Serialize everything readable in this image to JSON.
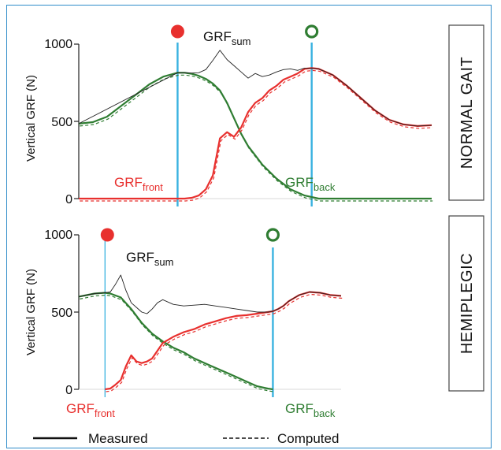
{
  "chart_data": [
    {
      "type": "line",
      "panel_label": "NORMAL GAIT",
      "ylabel": "Vertical GRF (N)",
      "y_ticks": [
        "0",
        "500",
        "1000"
      ],
      "ylim": [
        0,
        1000
      ],
      "annotations": {
        "sum": {
          "main": "GRF",
          "sub": "sum"
        },
        "front": {
          "main": "GRF",
          "sub": "front"
        },
        "back": {
          "main": "GRF",
          "sub": "back"
        }
      },
      "events": {
        "filled_circle_color": "#e8302e",
        "open_circle_color": "#2f7d32",
        "line_color": "#39b2e0"
      },
      "series": [
        {
          "key": "back",
          "color": "#2f7d32",
          "x": [
            0,
            4,
            8,
            12,
            16,
            20,
            24,
            28,
            30,
            32,
            34,
            36,
            38,
            40,
            42,
            44,
            46,
            48,
            50,
            52,
            56,
            60,
            64,
            68,
            72,
            76,
            80,
            84,
            88,
            92,
            96,
            100
          ],
          "y": [
            485,
            495,
            530,
            600,
            670,
            740,
            790,
            815,
            815,
            808,
            795,
            775,
            745,
            700,
            620,
            520,
            420,
            340,
            280,
            220,
            130,
            60,
            20,
            0,
            0,
            0,
            0,
            0,
            0,
            0,
            0,
            0
          ]
        },
        {
          "key": "front",
          "color": "#e8302e",
          "x": [
            0,
            28,
            30,
            32,
            34,
            36,
            38,
            40,
            42,
            44,
            46,
            48,
            50,
            52,
            54,
            56,
            58,
            60,
            62,
            64,
            66,
            68,
            72,
            76,
            80,
            84,
            88,
            92,
            96,
            100
          ],
          "y": [
            0,
            0,
            0,
            5,
            20,
            60,
            150,
            390,
            430,
            400,
            460,
            560,
            620,
            650,
            700,
            730,
            770,
            790,
            810,
            840,
            845,
            840,
            800,
            730,
            650,
            570,
            510,
            480,
            470,
            475
          ]
        },
        {
          "key": "sum",
          "color": "#222222",
          "x": [
            0,
            28,
            30,
            32,
            34,
            36,
            38,
            40,
            42,
            44,
            46,
            48,
            50,
            52,
            54,
            56,
            58,
            60,
            62,
            64,
            66,
            68,
            72,
            76,
            80,
            84,
            88,
            92,
            96,
            100
          ],
          "y": [
            485,
            815,
            815,
            813,
            815,
            835,
            895,
            960,
            900,
            860,
            820,
            780,
            810,
            790,
            800,
            820,
            835,
            840,
            830,
            845,
            845,
            840,
            800,
            730,
            650,
            570,
            510,
            480,
            470,
            475
          ]
        }
      ],
      "event_x": [
        28,
        66
      ]
    },
    {
      "type": "line",
      "panel_label": "HEMIPLEGIC",
      "ylabel": "Vertical GRF (N)",
      "y_ticks": [
        "0",
        "500",
        "1000"
      ],
      "ylim": [
        0,
        1000
      ],
      "annotations": {
        "sum": {
          "main": "GRF",
          "sub": "sum"
        },
        "front": {
          "main": "GRF",
          "sub": "front"
        },
        "back": {
          "main": "GRF",
          "sub": "back"
        }
      },
      "events": {
        "filled_circle_color": "#e8302e",
        "open_circle_color": "#2f7d32",
        "line_color": "#39b2e0"
      },
      "series": [
        {
          "key": "back",
          "color": "#2f7d32",
          "x": [
            0,
            6,
            10,
            12,
            16,
            20,
            24,
            28,
            32,
            36,
            40,
            44,
            48,
            52,
            56,
            60,
            64,
            68,
            72,
            74
          ],
          "y": [
            600,
            620,
            625,
            620,
            595,
            520,
            430,
            360,
            310,
            270,
            240,
            200,
            170,
            140,
            110,
            80,
            50,
            20,
            5,
            0
          ]
        },
        {
          "key": "front",
          "color": "#e8302e",
          "x": [
            10,
            12,
            14,
            16,
            18,
            20,
            22,
            24,
            26,
            28,
            30,
            32,
            36,
            40,
            44,
            48,
            52,
            56,
            60,
            64,
            68,
            72,
            74,
            76,
            78,
            80,
            84,
            88,
            92,
            96,
            100
          ],
          "y": [
            0,
            5,
            30,
            60,
            150,
            220,
            180,
            170,
            180,
            200,
            250,
            300,
            340,
            370,
            390,
            420,
            440,
            460,
            475,
            480,
            490,
            500,
            505,
            520,
            540,
            570,
            610,
            630,
            625,
            610,
            605
          ]
        },
        {
          "key": "sum",
          "color": "#222222",
          "x": [
            0,
            6,
            10,
            12,
            14,
            16,
            18,
            20,
            22,
            24,
            26,
            28,
            30,
            32,
            36,
            40,
            44,
            48,
            52,
            56,
            60,
            64,
            68,
            72,
            74,
            76,
            78,
            80,
            84,
            88,
            92,
            96,
            100
          ],
          "y": [
            600,
            620,
            625,
            630,
            680,
            740,
            640,
            560,
            530,
            500,
            490,
            520,
            560,
            580,
            550,
            540,
            545,
            550,
            540,
            530,
            520,
            510,
            500,
            500,
            505,
            520,
            540,
            570,
            610,
            630,
            625,
            610,
            605
          ]
        }
      ],
      "event_x": [
        10,
        74
      ]
    }
  ],
  "legend": {
    "measured": "Measured",
    "computed": "Computed"
  }
}
